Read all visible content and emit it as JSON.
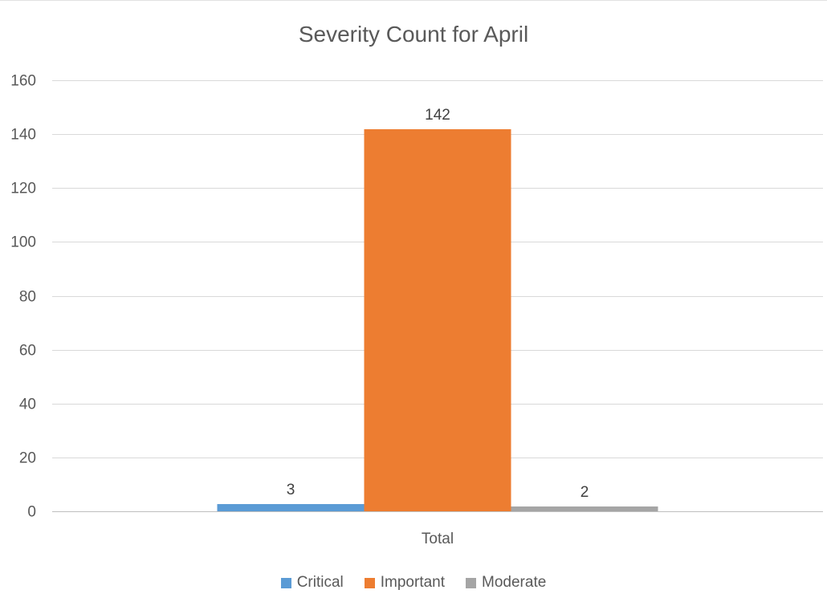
{
  "chart_data": {
    "type": "bar",
    "title": "Severity Count for April",
    "categories": [
      "Total"
    ],
    "series": [
      {
        "name": "Critical",
        "values": [
          3
        ],
        "color": "#5b9bd5"
      },
      {
        "name": "Important",
        "values": [
          142
        ],
        "color": "#ed7d31"
      },
      {
        "name": "Moderate",
        "values": [
          2
        ],
        "color": "#a5a5a5"
      }
    ],
    "xlabel": "",
    "ylabel": "",
    "ylim": [
      0,
      160
    ],
    "ytick_step": 20,
    "grid": true,
    "legend_position": "bottom",
    "data_labels": true
  }
}
